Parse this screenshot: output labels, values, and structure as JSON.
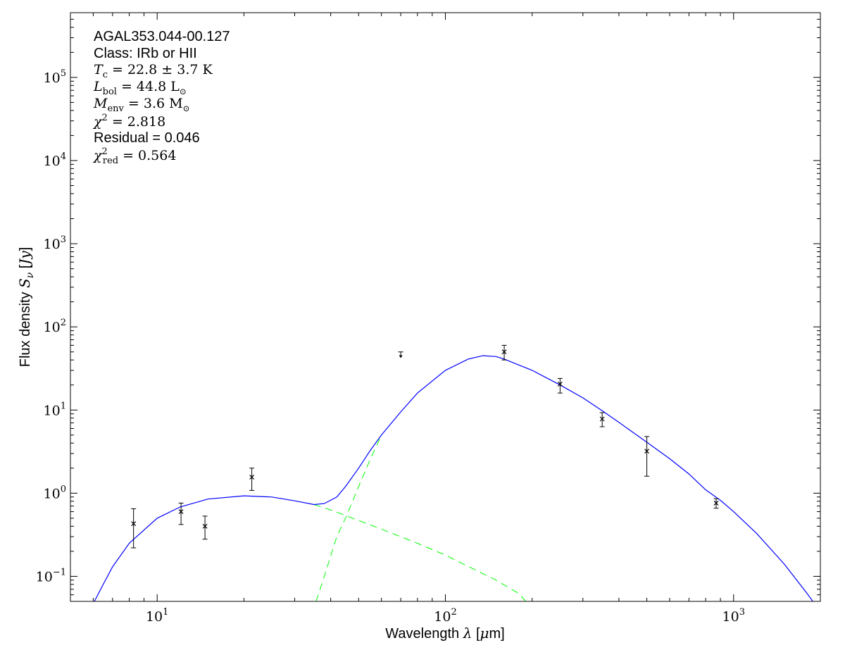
{
  "chart_data": {
    "type": "scatter",
    "xscale": "log",
    "yscale": "log",
    "xlim": [
      5,
      2000
    ],
    "ylim": [
      0.05,
      600000
    ],
    "xlabel": "Wavelength λ [μm]",
    "ylabel": "Flux density S_ν [Jy]",
    "x_major_ticks": [
      {
        "value": 10,
        "base": "10",
        "exp": "1"
      },
      {
        "value": 100,
        "base": "10",
        "exp": "2"
      },
      {
        "value": 1000,
        "base": "10",
        "exp": "3"
      }
    ],
    "y_major_ticks": [
      {
        "value": 0.1,
        "base": "10",
        "exp": "−1"
      },
      {
        "value": 1,
        "base": "10",
        "exp": "0"
      },
      {
        "value": 10,
        "base": "10",
        "exp": "1"
      },
      {
        "value": 100,
        "base": "10",
        "exp": "2"
      },
      {
        "value": 1000,
        "base": "10",
        "exp": "3"
      },
      {
        "value": 10000,
        "base": "10",
        "exp": "4"
      },
      {
        "value": 100000,
        "base": "10",
        "exp": "5"
      }
    ],
    "annotation_lines": [
      {
        "kind": "plain",
        "text": "AGAL353.044-00.127"
      },
      {
        "kind": "plain",
        "text": "Class: IRb or HII"
      },
      {
        "kind": "math",
        "sym": "T",
        "sub": "c",
        "rest": " = 22.8 ± 3.7 K"
      },
      {
        "kind": "math",
        "sym": "L",
        "sub": "bol",
        "rest": " = 44.8 L",
        "rest_sub": "⊙"
      },
      {
        "kind": "math",
        "sym": "M",
        "sub": "env",
        "rest": " = 3.6 M",
        "rest_sub": "⊙"
      },
      {
        "kind": "math",
        "sym": "χ",
        "sup": "2",
        "rest": " = 2.818"
      },
      {
        "kind": "plain",
        "text": "Residual = 0.046"
      },
      {
        "kind": "math",
        "sym": "χ",
        "sup": "2",
        "sub": "red",
        "rest": " = 0.564"
      }
    ],
    "points": [
      {
        "x": 8.28,
        "y": 0.43,
        "lo": 0.22,
        "hi": 0.65
      },
      {
        "x": 12.1,
        "y": 0.6,
        "lo": 0.42,
        "hi": 0.76
      },
      {
        "x": 14.65,
        "y": 0.4,
        "lo": 0.28,
        "hi": 0.53
      },
      {
        "x": 21.3,
        "y": 1.56,
        "lo": 1.08,
        "hi": 2.0
      }
    ],
    "upper_limits": [
      {
        "x": 70,
        "y": 50,
        "to": 43
      }
    ],
    "points_hi": [
      {
        "x": 160,
        "y": 50,
        "lo": 40,
        "hi": 60
      },
      {
        "x": 250,
        "y": 20.5,
        "lo": 16,
        "hi": 24
      },
      {
        "x": 350,
        "y": 7.8,
        "lo": 6.3,
        "hi": 9.3
      },
      {
        "x": 500,
        "y": 3.2,
        "lo": 1.6,
        "hi": 4.8
      },
      {
        "x": 870,
        "y": 0.76,
        "lo": 0.66,
        "hi": 0.86
      }
    ],
    "total_fit": [
      [
        6,
        0.047
      ],
      [
        6.5,
        0.08
      ],
      [
        7,
        0.13
      ],
      [
        8,
        0.25
      ],
      [
        10,
        0.5
      ],
      [
        12,
        0.68
      ],
      [
        15,
        0.85
      ],
      [
        20,
        0.93
      ],
      [
        25,
        0.9
      ],
      [
        30,
        0.81
      ],
      [
        35,
        0.73
      ],
      [
        38,
        0.75
      ],
      [
        42,
        0.9
      ],
      [
        45,
        1.2
      ],
      [
        50,
        2.0
      ],
      [
        55,
        3.3
      ],
      [
        60,
        5.0
      ],
      [
        70,
        9.5
      ],
      [
        80,
        16
      ],
      [
        100,
        30
      ],
      [
        120,
        41
      ],
      [
        135,
        45
      ],
      [
        150,
        44
      ],
      [
        160,
        41
      ],
      [
        200,
        30
      ],
      [
        250,
        20
      ],
      [
        300,
        14
      ],
      [
        350,
        9.8
      ],
      [
        400,
        7.1
      ],
      [
        500,
        4.1
      ],
      [
        600,
        2.6
      ],
      [
        700,
        1.7
      ],
      [
        800,
        1.1
      ],
      [
        900,
        0.82
      ],
      [
        1000,
        0.6
      ],
      [
        1200,
        0.33
      ],
      [
        1500,
        0.14
      ],
      [
        1800,
        0.062
      ],
      [
        1900,
        0.048
      ]
    ],
    "warm_component": [
      [
        35,
        0.73
      ],
      [
        40,
        0.63
      ],
      [
        50,
        0.47
      ],
      [
        60,
        0.37
      ],
      [
        80,
        0.25
      ],
      [
        100,
        0.18
      ],
      [
        150,
        0.09
      ],
      [
        180,
        0.062
      ],
      [
        190,
        0.05
      ]
    ],
    "cold_component": [
      [
        35.6,
        0.05
      ],
      [
        38,
        0.1
      ],
      [
        42,
        0.3
      ],
      [
        45,
        0.5
      ],
      [
        50,
        1.2
      ],
      [
        55,
        2.6
      ],
      [
        60,
        5.0
      ]
    ],
    "colors": {
      "fit": "#0000ff",
      "components": "#00ff00",
      "data": "#000000"
    }
  }
}
